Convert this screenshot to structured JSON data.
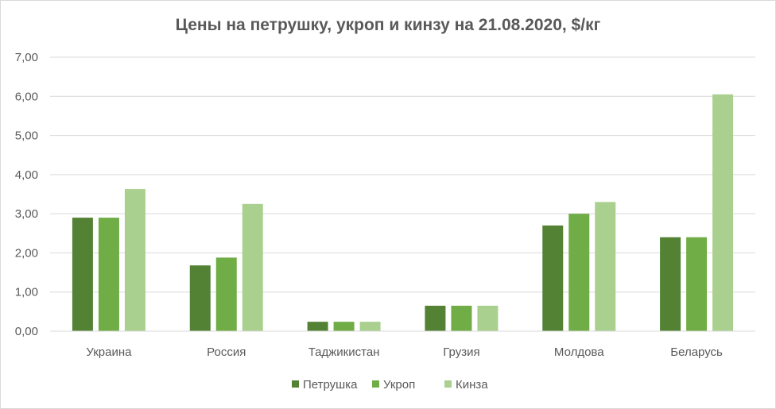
{
  "chart_data": {
    "type": "bar",
    "title": "Цены на петрушку, укроп и кинзу на 21.08.2020, $/кг",
    "categories": [
      "Украина",
      "Россия",
      "Таджикистан",
      "Грузия",
      "Молдова",
      "Беларусь"
    ],
    "series": [
      {
        "name": "Петрушка",
        "color": "#548235",
        "values": [
          2.9,
          1.68,
          0.24,
          0.65,
          2.7,
          2.4
        ]
      },
      {
        "name": "Укроп",
        "color": "#70ad47",
        "values": [
          2.9,
          1.88,
          0.24,
          0.65,
          3.0,
          2.4
        ]
      },
      {
        "name": "Кинза",
        "color": "#a9d08e",
        "values": [
          3.63,
          3.25,
          0.24,
          0.65,
          3.3,
          6.05
        ]
      }
    ],
    "ylim": [
      0,
      7
    ],
    "ytick_labels": [
      "0,00",
      "1,00",
      "2,00",
      "3,00",
      "4,00",
      "5,00",
      "6,00",
      "7,00"
    ],
    "xlabel": "",
    "ylabel": "",
    "grid": true,
    "legend_position": "bottom"
  }
}
